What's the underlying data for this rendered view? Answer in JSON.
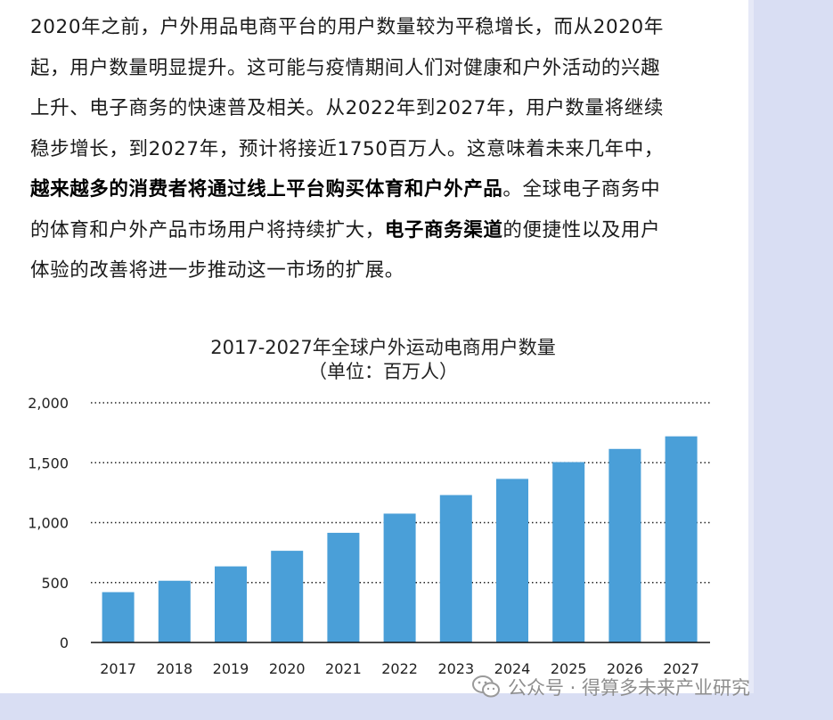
{
  "article": {
    "lines": [
      [
        {
          "t": "2020年之前，户外用品电商平台的用户数量较为平稳增长，而从2020年"
        }
      ],
      [
        {
          "t": "起，用户数量明显提升。这可能与疫情期间人们对健康和户外活动的兴趣"
        }
      ],
      [
        {
          "t": "上升、电子商务的快速普及相关。从2022年到2027年，用户数量将继续"
        }
      ],
      [
        {
          "t": "稳步增长，到2027年，预计将接近1750百万人。这意味着未来几年中，"
        }
      ],
      [
        {
          "t": "越来越多的消费者将通过线上平台购买体育和户外产品",
          "b": true
        },
        {
          "t": "。全球电子商务中"
        }
      ],
      [
        {
          "t": "的体育和户外产品市场用户将持续扩大，"
        },
        {
          "t": "电子商务渠道",
          "b": true
        },
        {
          "t": "的便捷性以及用户"
        }
      ],
      [
        {
          "t": "体验的改善将进一步推动这一市场的扩展。"
        }
      ]
    ]
  },
  "chart_data": {
    "type": "bar",
    "title": "2017-2027年全球户外运动电商用户数量",
    "subtitle": "（单位：百万人）",
    "categories": [
      "2017",
      "2018",
      "2019",
      "2020",
      "2021",
      "2022",
      "2023",
      "2024",
      "2025",
      "2026",
      "2027"
    ],
    "values": [
      420,
      515,
      635,
      765,
      915,
      1075,
      1230,
      1365,
      1505,
      1615,
      1720
    ],
    "yticks": [
      "0",
      "500",
      "1,000",
      "1,500",
      "2,000"
    ],
    "ylim": [
      0,
      2000
    ],
    "grid": "dotted horizontal",
    "bar_color": "#4a9fd8"
  },
  "watermark": {
    "icon": "wechat-icon",
    "text": "公众号 · 得算多未来产业研究"
  }
}
